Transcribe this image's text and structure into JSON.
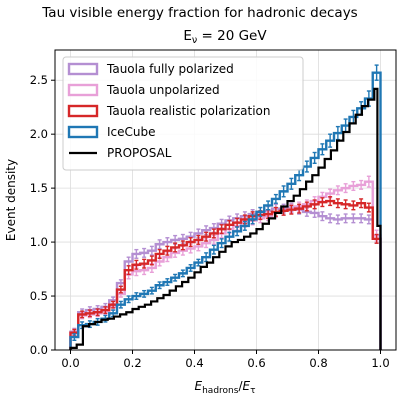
{
  "chart_data": {
    "type": "histogram-step",
    "title": "Tau visible energy fraction for hadronic decays",
    "subtitle": "E_ν = 20 GeV",
    "xlabel": "E_hadrons/E_τ",
    "ylabel": "Event density",
    "xlim": [
      -0.05,
      1.05
    ],
    "ylim": [
      0,
      2.78
    ],
    "xticks": [
      {
        "value": 0.0,
        "label": "0.0"
      },
      {
        "value": 0.2,
        "label": "0.2"
      },
      {
        "value": 0.4,
        "label": "0.4"
      },
      {
        "value": 0.6,
        "label": "0.6"
      },
      {
        "value": 0.8,
        "label": "0.8"
      },
      {
        "value": 1.0,
        "label": "1.0"
      }
    ],
    "yticks": [
      {
        "value": 0.0,
        "label": "0.0"
      },
      {
        "value": 0.5,
        "label": "0.5"
      },
      {
        "value": 1.0,
        "label": "1.0"
      },
      {
        "value": 1.5,
        "label": "1.5"
      },
      {
        "value": 2.0,
        "label": "2.0"
      },
      {
        "value": 2.5,
        "label": "2.5"
      }
    ],
    "grid": true,
    "legend_position": "top-left",
    "bin_edges": [
      0.0,
      0.025,
      0.05,
      0.075,
      0.1,
      0.125,
      0.15,
      0.175,
      0.2,
      0.225,
      0.25,
      0.275,
      0.3,
      0.325,
      0.35,
      0.375,
      0.4,
      0.425,
      0.45,
      0.475,
      0.5,
      0.525,
      0.55,
      0.575,
      0.6,
      0.625,
      0.65,
      0.675,
      0.7,
      0.725,
      0.75,
      0.775,
      0.8,
      0.825,
      0.85,
      0.875,
      0.9,
      0.925,
      0.95,
      0.975,
      1.0
    ],
    "series": [
      {
        "name": "Tauola fully polarized",
        "color": "#b48fd2",
        "style": "step-errorbar",
        "values": [
          0.17,
          0.35,
          0.37,
          0.38,
          0.4,
          0.46,
          0.62,
          0.82,
          0.89,
          0.9,
          0.92,
          0.98,
          1.0,
          1.02,
          1.03,
          1.05,
          1.08,
          1.11,
          1.13,
          1.17,
          1.2,
          1.22,
          1.24,
          1.26,
          1.28,
          1.29,
          1.31,
          1.31,
          1.32,
          1.3,
          1.28,
          1.27,
          1.24,
          1.22,
          1.21,
          1.22,
          1.22,
          1.22,
          1.21,
          1.03
        ],
        "errors": [
          0.03,
          0.03,
          0.03,
          0.03,
          0.03,
          0.03,
          0.03,
          0.04,
          0.04,
          0.04,
          0.04,
          0.04,
          0.04,
          0.04,
          0.04,
          0.04,
          0.04,
          0.04,
          0.04,
          0.04,
          0.04,
          0.04,
          0.04,
          0.04,
          0.04,
          0.04,
          0.04,
          0.04,
          0.04,
          0.04,
          0.04,
          0.04,
          0.04,
          0.04,
          0.04,
          0.04,
          0.04,
          0.04,
          0.04,
          0.04
        ]
      },
      {
        "name": "Tauola unpolarized",
        "color": "#e8a0d8",
        "style": "step-errorbar",
        "values": [
          0.16,
          0.32,
          0.33,
          0.34,
          0.36,
          0.4,
          0.52,
          0.7,
          0.73,
          0.74,
          0.76,
          0.82,
          0.86,
          0.9,
          0.92,
          0.94,
          0.96,
          0.99,
          1.02,
          1.08,
          1.12,
          1.15,
          1.18,
          1.2,
          1.22,
          1.24,
          1.27,
          1.29,
          1.31,
          1.33,
          1.35,
          1.38,
          1.42,
          1.45,
          1.48,
          1.5,
          1.52,
          1.53,
          1.56,
          1.06
        ],
        "errors": [
          0.03,
          0.03,
          0.03,
          0.03,
          0.03,
          0.03,
          0.03,
          0.04,
          0.04,
          0.04,
          0.04,
          0.04,
          0.04,
          0.04,
          0.04,
          0.04,
          0.04,
          0.04,
          0.04,
          0.04,
          0.04,
          0.04,
          0.04,
          0.04,
          0.04,
          0.04,
          0.04,
          0.04,
          0.04,
          0.04,
          0.04,
          0.04,
          0.04,
          0.04,
          0.04,
          0.04,
          0.04,
          0.04,
          0.05,
          0.05
        ]
      },
      {
        "name": "Tauola realistic polarization",
        "color": "#d62728",
        "style": "step-errorbar",
        "values": [
          0.16,
          0.33,
          0.34,
          0.35,
          0.37,
          0.42,
          0.56,
          0.74,
          0.79,
          0.8,
          0.83,
          0.89,
          0.92,
          0.95,
          0.97,
          1.0,
          1.02,
          1.05,
          1.08,
          1.12,
          1.16,
          1.18,
          1.21,
          1.24,
          1.25,
          1.26,
          1.28,
          1.29,
          1.3,
          1.31,
          1.33,
          1.35,
          1.37,
          1.38,
          1.36,
          1.35,
          1.34,
          1.36,
          1.32,
          1.03
        ],
        "errors": [
          0.03,
          0.03,
          0.03,
          0.03,
          0.03,
          0.03,
          0.03,
          0.04,
          0.04,
          0.04,
          0.04,
          0.04,
          0.04,
          0.04,
          0.04,
          0.04,
          0.04,
          0.04,
          0.04,
          0.04,
          0.04,
          0.04,
          0.04,
          0.04,
          0.04,
          0.04,
          0.04,
          0.04,
          0.04,
          0.04,
          0.04,
          0.04,
          0.04,
          0.04,
          0.04,
          0.04,
          0.04,
          0.04,
          0.04,
          0.04
        ]
      },
      {
        "name": "IceCube",
        "color": "#1f77b4",
        "style": "step-errorbar",
        "values": [
          0.12,
          0.23,
          0.24,
          0.26,
          0.29,
          0.34,
          0.42,
          0.47,
          0.5,
          0.52,
          0.55,
          0.6,
          0.63,
          0.67,
          0.71,
          0.76,
          0.81,
          0.86,
          0.93,
          0.99,
          1.05,
          1.1,
          1.15,
          1.21,
          1.28,
          1.34,
          1.4,
          1.47,
          1.54,
          1.62,
          1.7,
          1.78,
          1.86,
          1.94,
          2.01,
          2.08,
          2.16,
          2.24,
          2.33,
          2.57
        ],
        "errors": [
          0.03,
          0.03,
          0.03,
          0.03,
          0.03,
          0.03,
          0.03,
          0.03,
          0.03,
          0.03,
          0.03,
          0.03,
          0.03,
          0.03,
          0.03,
          0.03,
          0.03,
          0.04,
          0.04,
          0.04,
          0.04,
          0.04,
          0.04,
          0.04,
          0.04,
          0.04,
          0.04,
          0.05,
          0.05,
          0.05,
          0.05,
          0.05,
          0.05,
          0.06,
          0.06,
          0.06,
          0.06,
          0.06,
          0.07,
          0.07
        ]
      },
      {
        "name": "PROPOSAL",
        "color": "#000000",
        "style": "step",
        "bin_edges": [
          0.0,
          0.02,
          0.04,
          0.06,
          0.08,
          0.1,
          0.12,
          0.14,
          0.16,
          0.18,
          0.2,
          0.22,
          0.24,
          0.26,
          0.28,
          0.3,
          0.32,
          0.34,
          0.36,
          0.38,
          0.4,
          0.42,
          0.44,
          0.46,
          0.48,
          0.5,
          0.52,
          0.54,
          0.56,
          0.58,
          0.6,
          0.62,
          0.64,
          0.66,
          0.68,
          0.7,
          0.72,
          0.74,
          0.76,
          0.78,
          0.8,
          0.82,
          0.84,
          0.86,
          0.88,
          0.9,
          0.92,
          0.94,
          0.96,
          0.98,
          0.99,
          1.0
        ],
        "values": [
          0.02,
          0.05,
          0.22,
          0.24,
          0.26,
          0.28,
          0.29,
          0.31,
          0.33,
          0.35,
          0.38,
          0.4,
          0.42,
          0.45,
          0.48,
          0.51,
          0.55,
          0.59,
          0.63,
          0.67,
          0.72,
          0.77,
          0.81,
          0.86,
          0.91,
          0.96,
          1.0,
          1.02,
          1.05,
          1.08,
          1.12,
          1.17,
          1.22,
          1.27,
          1.33,
          1.38,
          1.43,
          1.49,
          1.56,
          1.62,
          1.69,
          1.77,
          1.85,
          1.94,
          2.02,
          2.1,
          2.18,
          2.26,
          2.32,
          2.42,
          1.15
        ]
      }
    ]
  }
}
